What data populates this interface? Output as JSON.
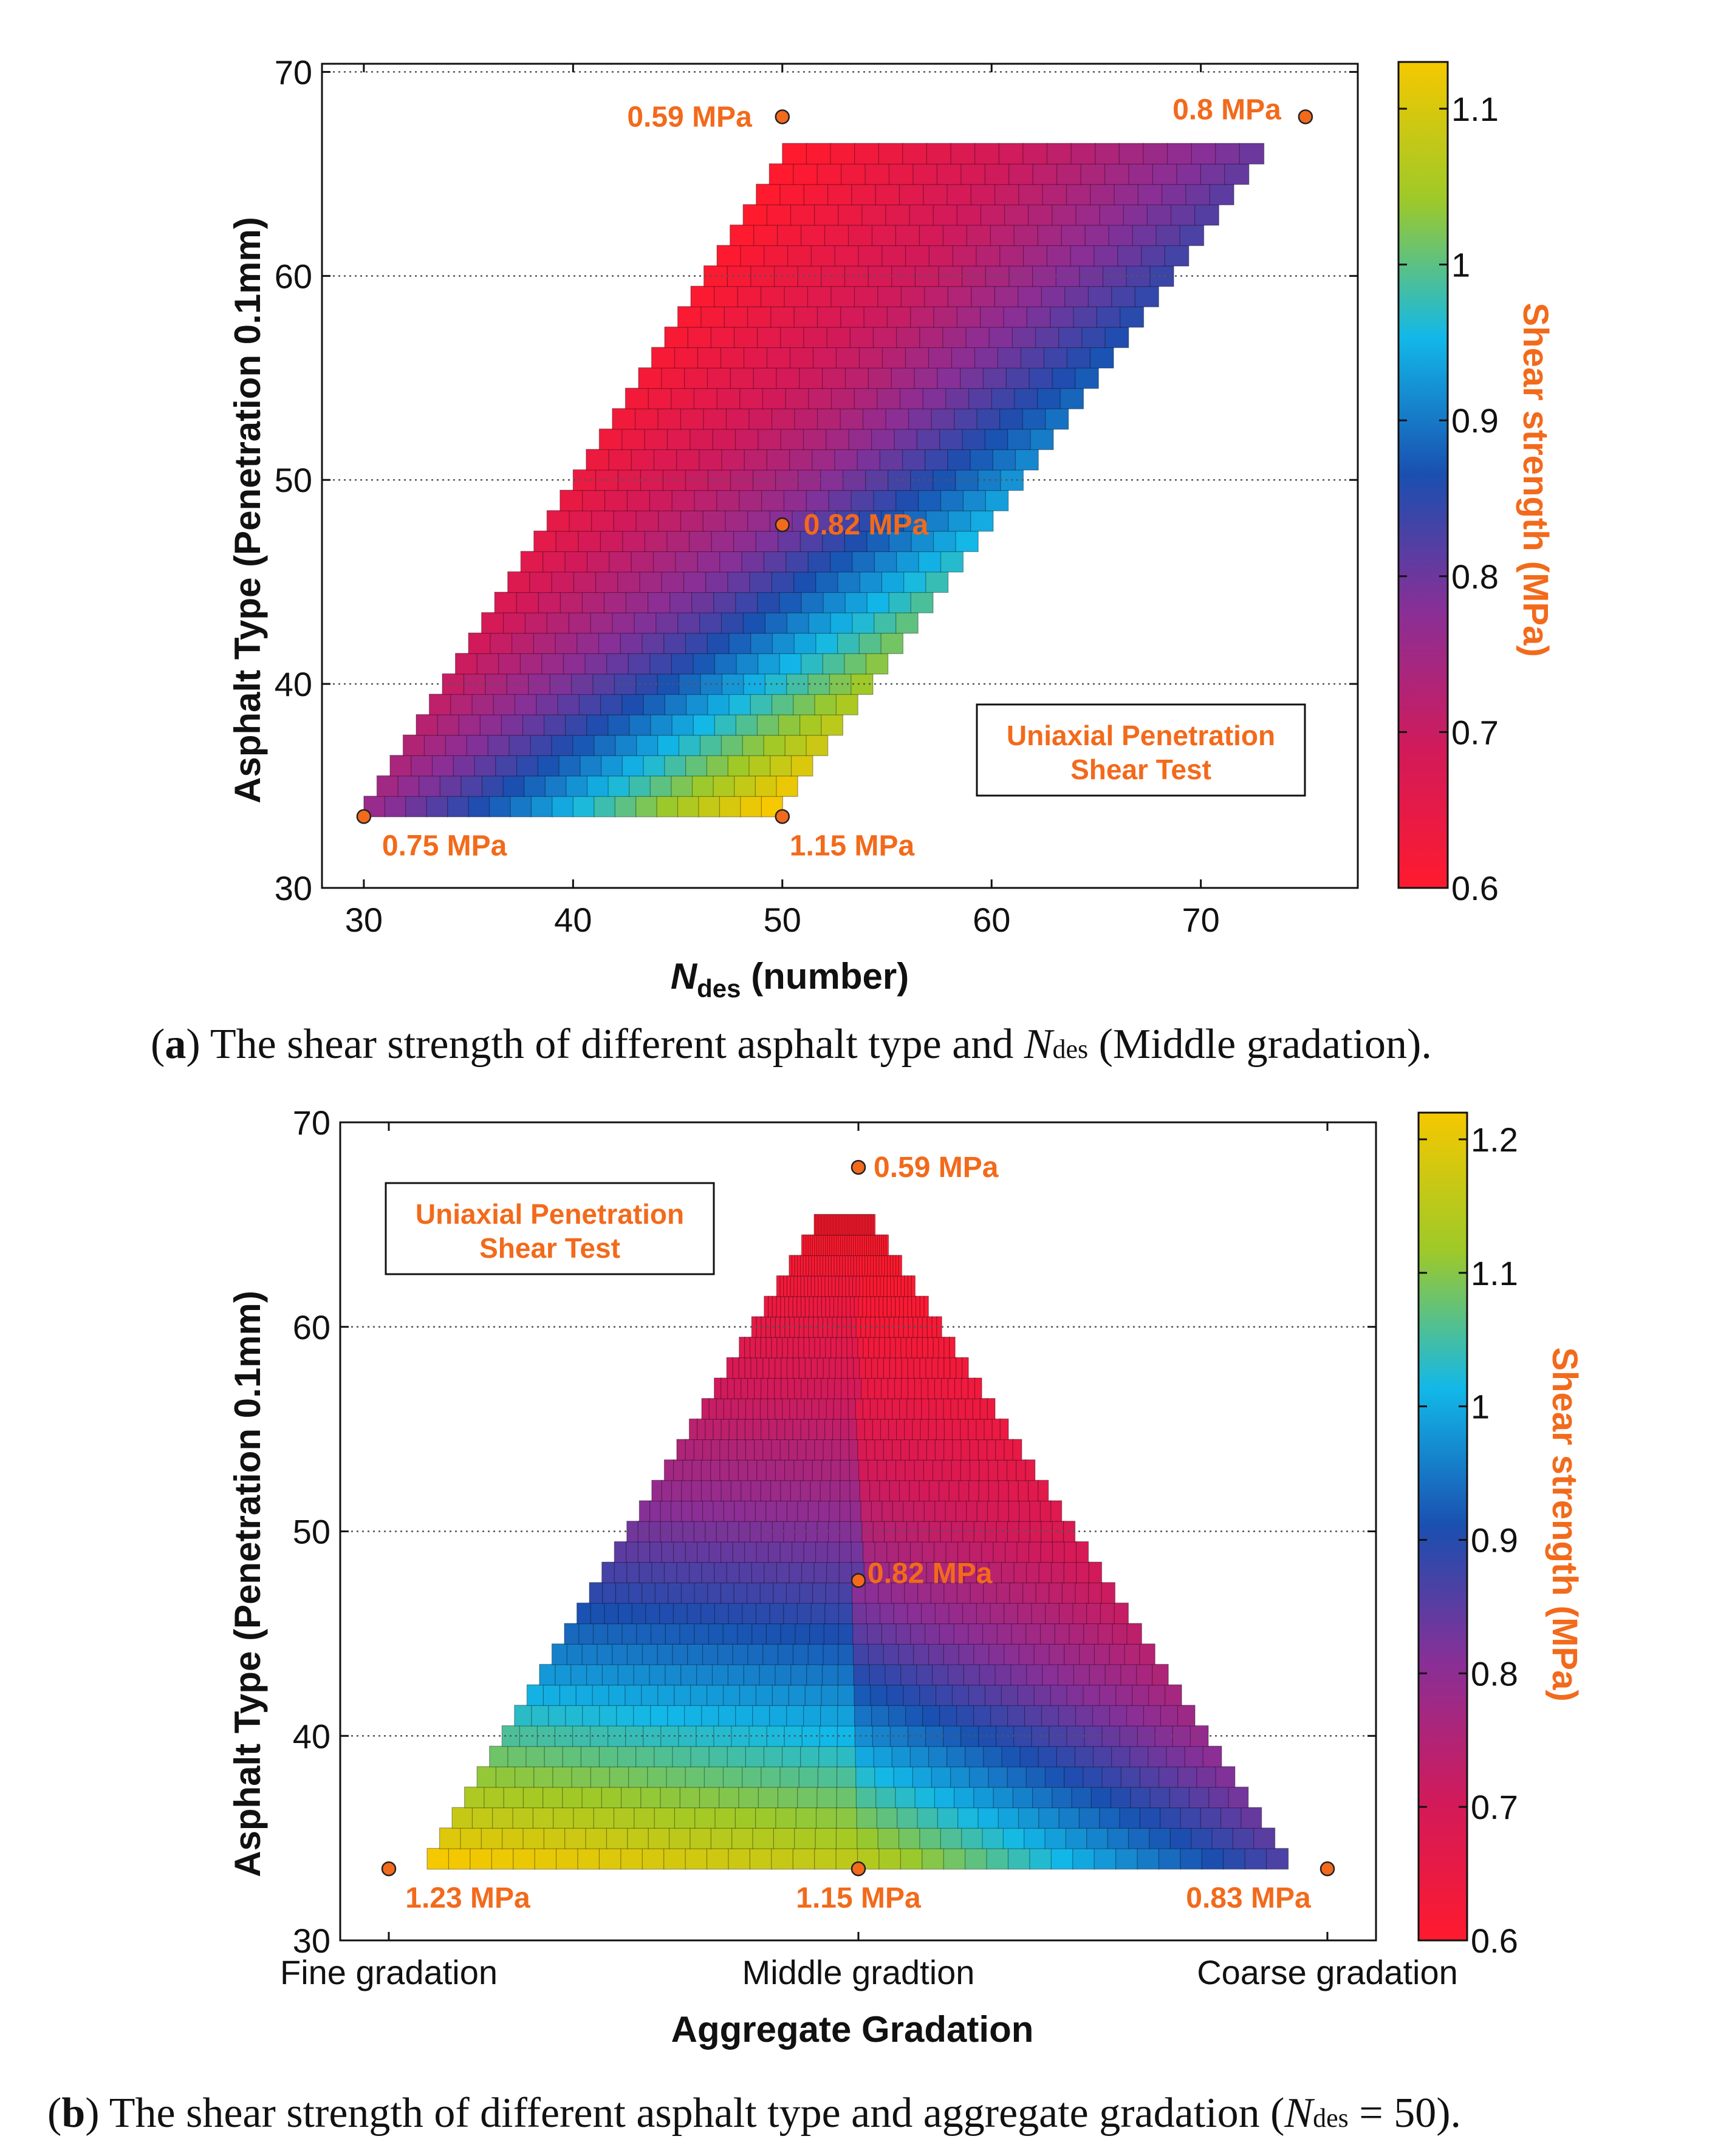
{
  "colors": {
    "annotation": "#f26a1b",
    "colormap": [
      "#ff1a2e",
      "#d21a5a",
      "#8a2f96",
      "#1a4fb0",
      "#12b8e8",
      "#9ec928",
      "#f5c800"
    ]
  },
  "chart_data": [
    {
      "id": "a",
      "type": "heatmap",
      "title": "",
      "xlabel_main": "N",
      "xlabel_sub": "des",
      "xlabel_rest": " (number)",
      "ylabel": "Asphalt Type (Penetration 0.1mm)",
      "xlim": [
        28,
        77.5
      ],
      "ylim": [
        30,
        70.4
      ],
      "xticks": [
        30,
        40,
        50,
        60,
        70
      ],
      "yticks": [
        30,
        40,
        50,
        60,
        70
      ],
      "grid": "horizontal dotted",
      "colorbar": {
        "label": "Shear strength (MPa)",
        "range": [
          0.6,
          1.13
        ],
        "ticks": [
          0.6,
          0.7,
          0.8,
          0.9,
          1,
          1.1
        ]
      },
      "region": "parallelogram from N=30..50 at penetration 34 to N=50..73 at penetration 67",
      "corner_points": [
        {
          "x": 30,
          "y": 34,
          "label": "0.75 MPa"
        },
        {
          "x": 50,
          "y": 34,
          "label": "1.15 MPa"
        },
        {
          "x": 50,
          "y": 68,
          "label": "0.59 MPa"
        },
        {
          "x": 75,
          "y": 68,
          "label": "0.8 MPa"
        },
        {
          "x": 50,
          "y": 48,
          "label": "0.82 MPa"
        }
      ],
      "legend_box": [
        "Uniaxial Penetration",
        "Shear Test"
      ]
    },
    {
      "id": "b",
      "type": "heatmap",
      "title": "",
      "xlabel": "Aggregate Gradation",
      "ylabel": "Asphalt Type (Penetration 0.1mm)",
      "x_categories": [
        "Fine gradation",
        "Middle gradtion",
        "Coarse gradation"
      ],
      "ylim": [
        30,
        70
      ],
      "yticks": [
        30,
        40,
        50,
        60,
        70
      ],
      "grid": "horizontal dotted",
      "colorbar": {
        "label": "Shear strength (MPa)",
        "range": [
          0.6,
          1.22
        ],
        "ticks": [
          0.6,
          0.7,
          0.8,
          0.9,
          1,
          1.1,
          1.2
        ]
      },
      "region": "triangle from fine..coarse at penetration 34 to apex at middle, penetration 65",
      "corner_points": [
        {
          "x": "Fine gradation",
          "y": 34,
          "label": "1.23 MPa"
        },
        {
          "x": "Middle gradtion",
          "y": 34,
          "label": "1.15 MPa"
        },
        {
          "x": "Coarse gradation",
          "y": 34,
          "label": "0.83 MPa"
        },
        {
          "x": "Middle gradtion",
          "y": 68,
          "label": "0.59 MPa"
        },
        {
          "x": "Middle gradtion",
          "y": 48,
          "label": "0.82 MPa"
        }
      ],
      "legend_box": [
        "Uniaxial Penetration",
        "Shear Test"
      ]
    }
  ],
  "captions": {
    "a": {
      "letter": "a",
      "pre": " The shear strength of different asphalt type and ",
      "var": "N",
      "sub": "des",
      "post": " (Middle gradation)."
    },
    "b": {
      "letter": "b",
      "pre": " The shear strength of different asphalt type and aggregate gradation (",
      "var": "N",
      "sub": "des",
      "post": " = 50)."
    }
  }
}
